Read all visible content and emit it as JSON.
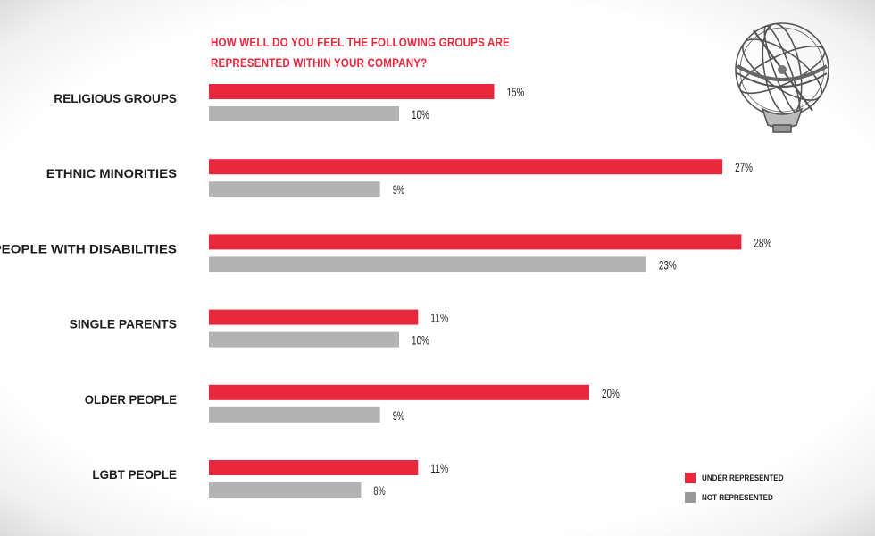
{
  "chart_data": {
    "type": "bar",
    "orientation": "horizontal",
    "title": "HOW WELL DO YOU FEEL THE FOLLOWING GROUPS ARE REPRESENTED WITHIN YOUR COMPANY?",
    "categories": [
      "RELIGIOUS GROUPS",
      "ETHNIC MINORITIES",
      "PEOPLE WITH DISABILITIES",
      "SINGLE PARENTS",
      "OLDER PEOPLE",
      "LGBT PEOPLE"
    ],
    "series": [
      {
        "name": "UNDER REPRESENTED",
        "color": "#e8283c",
        "values": [
          15,
          27,
          28,
          11,
          20,
          11
        ],
        "labels": [
          "15%",
          "27%",
          "28%",
          "11%",
          "20%",
          "11%"
        ]
      },
      {
        "name": "NOT REPRESENTED",
        "color": "#b3b3b3",
        "values": [
          10,
          9,
          23,
          10,
          9,
          8
        ],
        "labels": [
          "10%",
          "9%",
          "23%",
          "10%",
          "9%",
          "8%"
        ]
      }
    ],
    "value_unit": "%",
    "grid": false,
    "legend_position": "bottom-right"
  },
  "legend_swatch_colors": [
    "#e8283c",
    "#999999"
  ],
  "decoration": {
    "icon": "armillary-sphere-icon"
  }
}
